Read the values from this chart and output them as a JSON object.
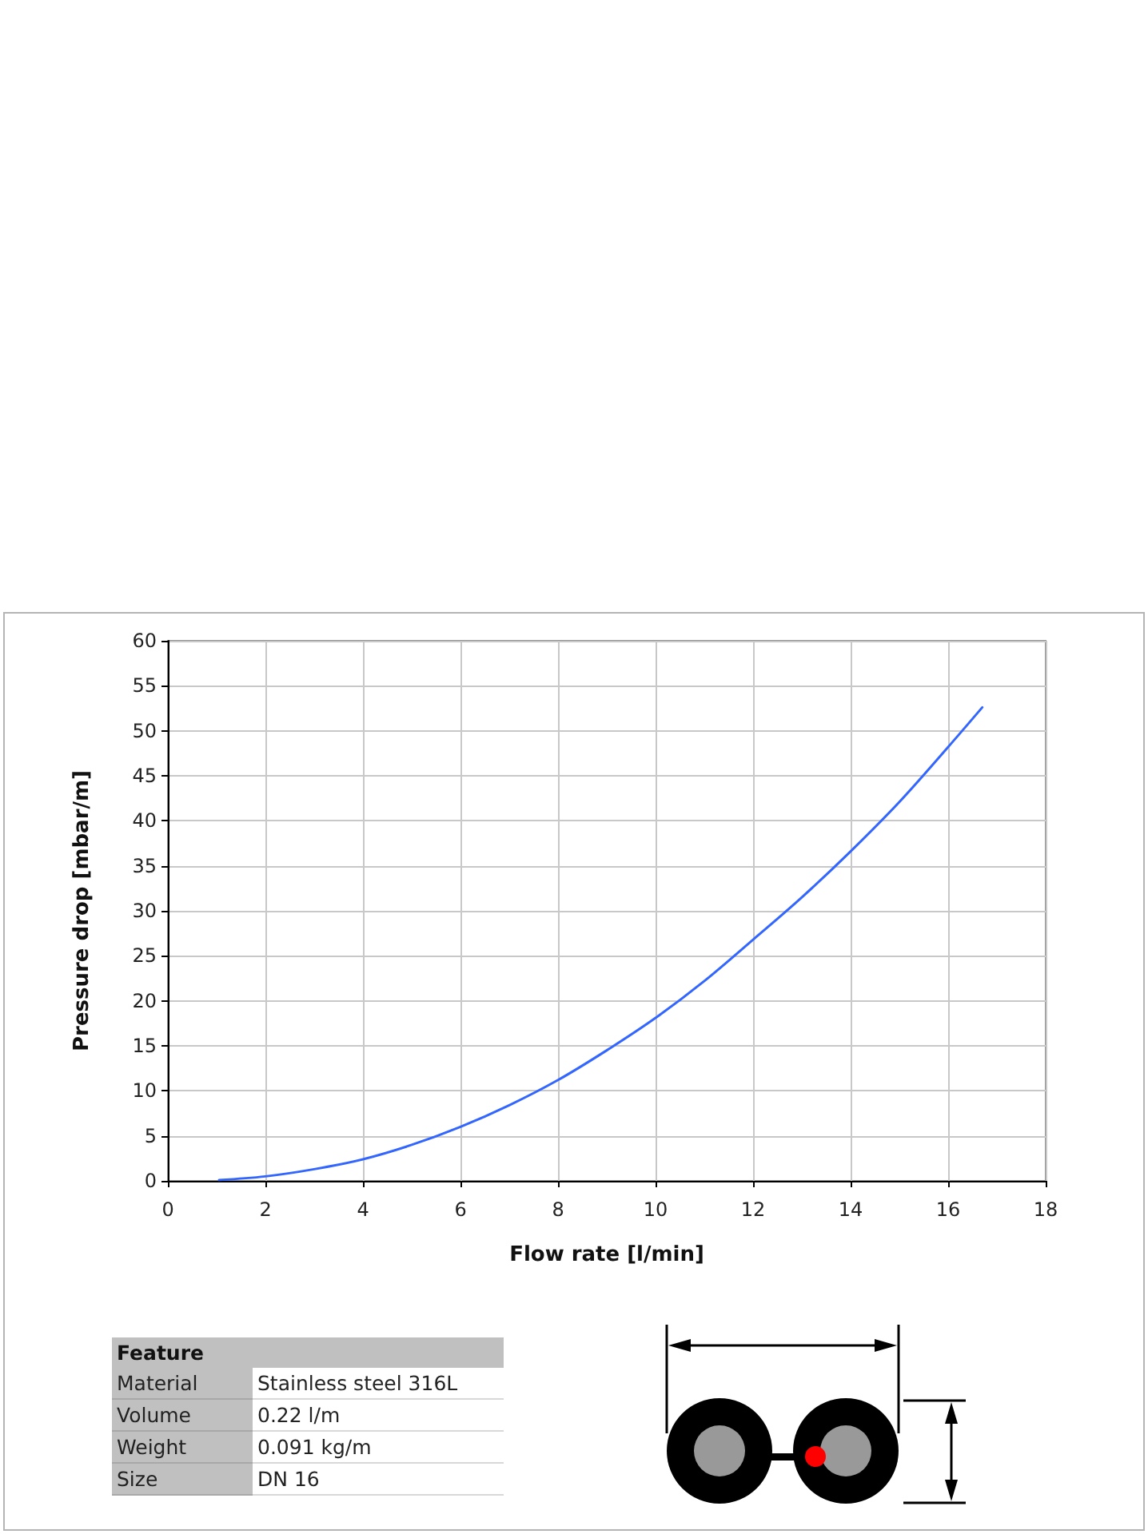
{
  "chart_data": {
    "type": "line",
    "x": [
      1.05,
      2,
      3,
      4,
      5,
      6,
      7,
      8,
      9,
      10,
      11,
      12,
      13,
      14,
      15,
      16,
      16.7
    ],
    "values": [
      0.1,
      0.5,
      1.3,
      2.4,
      4.0,
      6.0,
      8.4,
      11.2,
      14.5,
      18.1,
      22.2,
      26.8,
      31.5,
      36.6,
      42.1,
      48.2,
      52.6
    ],
    "color": "#3366ff",
    "marker": "none",
    "xlim": [
      0,
      18
    ],
    "xticks": [
      0,
      2,
      4,
      6,
      8,
      10,
      12,
      14,
      16,
      18
    ],
    "ylim": [
      0,
      60
    ],
    "yticks": [
      0,
      5,
      10,
      15,
      20,
      25,
      30,
      35,
      40,
      45,
      50,
      55,
      60
    ],
    "xlabel": "Flow rate [l/min]",
    "ylabel": "Pressure drop [mbar/m]",
    "grid": true,
    "annotations": [
      "Feature",
      "Material",
      "Stainless steel 316L",
      "Volume",
      "0.22 l/m",
      "Weight",
      "0.091 kg/m",
      "Size",
      "DN 16"
    ]
  }
}
